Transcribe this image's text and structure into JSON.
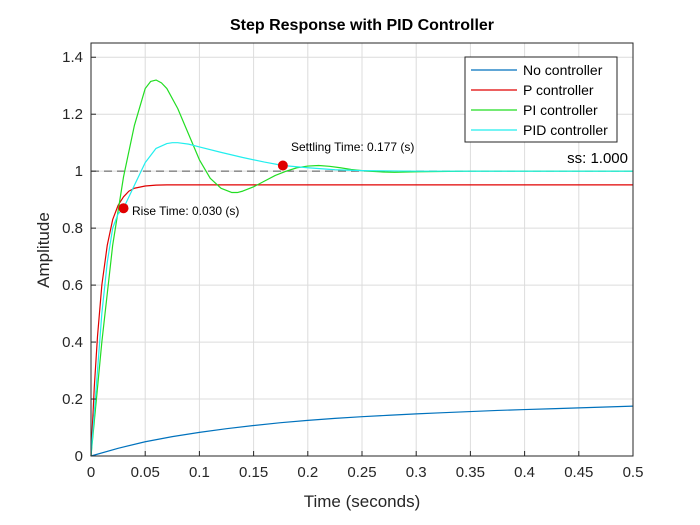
{
  "chart_data": {
    "type": "line",
    "title": "Step Response with PID Controller",
    "xlabel": "Time (seconds)",
    "ylabel": "Amplitude",
    "xlim": [
      0,
      0.5
    ],
    "ylim": [
      0,
      1.45
    ],
    "grid": true,
    "legend_position": "top-right",
    "x_ticks": [
      "0",
      "0.05",
      "0.1",
      "0.15",
      "0.2",
      "0.25",
      "0.3",
      "0.35",
      "0.4",
      "0.45",
      "0.5"
    ],
    "y_ticks": [
      "0",
      "0.2",
      "0.4",
      "0.6",
      "0.8",
      "1",
      "1.2",
      "1.4"
    ],
    "series": [
      {
        "name": "No controller",
        "color": "#0072BD",
        "x": [
          0,
          0.025,
          0.05,
          0.075,
          0.1,
          0.125,
          0.15,
          0.175,
          0.2,
          0.225,
          0.25,
          0.275,
          0.3,
          0.325,
          0.35,
          0.375,
          0.4,
          0.425,
          0.45,
          0.475,
          0.5
        ],
        "y": [
          0,
          0.027,
          0.05,
          0.068,
          0.083,
          0.096,
          0.107,
          0.117,
          0.125,
          0.132,
          0.138,
          0.143,
          0.148,
          0.152,
          0.156,
          0.16,
          0.163,
          0.166,
          0.169,
          0.172,
          0.175
        ]
      },
      {
        "name": "P controller",
        "color": "#E00000",
        "x": [
          0,
          0.003,
          0.006,
          0.01,
          0.015,
          0.02,
          0.025,
          0.03,
          0.035,
          0.04,
          0.05,
          0.06,
          0.07,
          0.08,
          0.1,
          0.15,
          0.2,
          0.3,
          0.4,
          0.5
        ],
        "y": [
          0,
          0.24,
          0.42,
          0.6,
          0.74,
          0.83,
          0.88,
          0.91,
          0.93,
          0.94,
          0.948,
          0.951,
          0.952,
          0.952,
          0.952,
          0.952,
          0.952,
          0.952,
          0.952,
          0.952
        ]
      },
      {
        "name": "PI controller",
        "color": "#22DD22",
        "x": [
          0,
          0.01,
          0.02,
          0.03,
          0.04,
          0.05,
          0.055,
          0.06,
          0.065,
          0.07,
          0.08,
          0.09,
          0.1,
          0.11,
          0.12,
          0.13,
          0.135,
          0.14,
          0.15,
          0.16,
          0.17,
          0.18,
          0.19,
          0.2,
          0.21,
          0.22,
          0.23,
          0.24,
          0.25,
          0.26,
          0.27,
          0.28,
          0.3,
          0.35,
          0.4,
          0.5
        ],
        "y": [
          0,
          0.4,
          0.74,
          0.98,
          1.16,
          1.29,
          1.315,
          1.32,
          1.31,
          1.29,
          1.22,
          1.13,
          1.04,
          0.975,
          0.94,
          0.925,
          0.925,
          0.93,
          0.945,
          0.965,
          0.985,
          1.0,
          1.012,
          1.018,
          1.02,
          1.017,
          1.012,
          1.006,
          1.002,
          0.999,
          0.997,
          0.996,
          0.998,
          1.0,
          1.0,
          1.0
        ]
      },
      {
        "name": "PID controller",
        "color": "#22EEEE",
        "x": [
          0,
          0.005,
          0.01,
          0.015,
          0.02,
          0.025,
          0.03,
          0.04,
          0.05,
          0.06,
          0.07,
          0.075,
          0.08,
          0.09,
          0.1,
          0.12,
          0.14,
          0.16,
          0.177,
          0.2,
          0.225,
          0.25,
          0.3,
          0.35,
          0.4,
          0.5
        ],
        "y": [
          0,
          0.25,
          0.5,
          0.68,
          0.8,
          0.85,
          0.87,
          0.95,
          1.03,
          1.08,
          1.097,
          1.1,
          1.1,
          1.095,
          1.085,
          1.066,
          1.048,
          1.032,
          1.02,
          1.012,
          1.005,
          1.002,
          1.0,
          1.0,
          1.0,
          1.0
        ]
      }
    ],
    "reference_line": {
      "y": 1.0,
      "style": "dashed",
      "label": "ss: 1.000"
    },
    "annotations": [
      {
        "text": "Rise Time: 0.030 (s)",
        "x": 0.03,
        "y": 0.87,
        "marker_color": "#E00000"
      },
      {
        "text": "Settling Time: 0.177 (s)",
        "x": 0.177,
        "y": 1.02,
        "marker_color": "#E00000"
      }
    ]
  }
}
